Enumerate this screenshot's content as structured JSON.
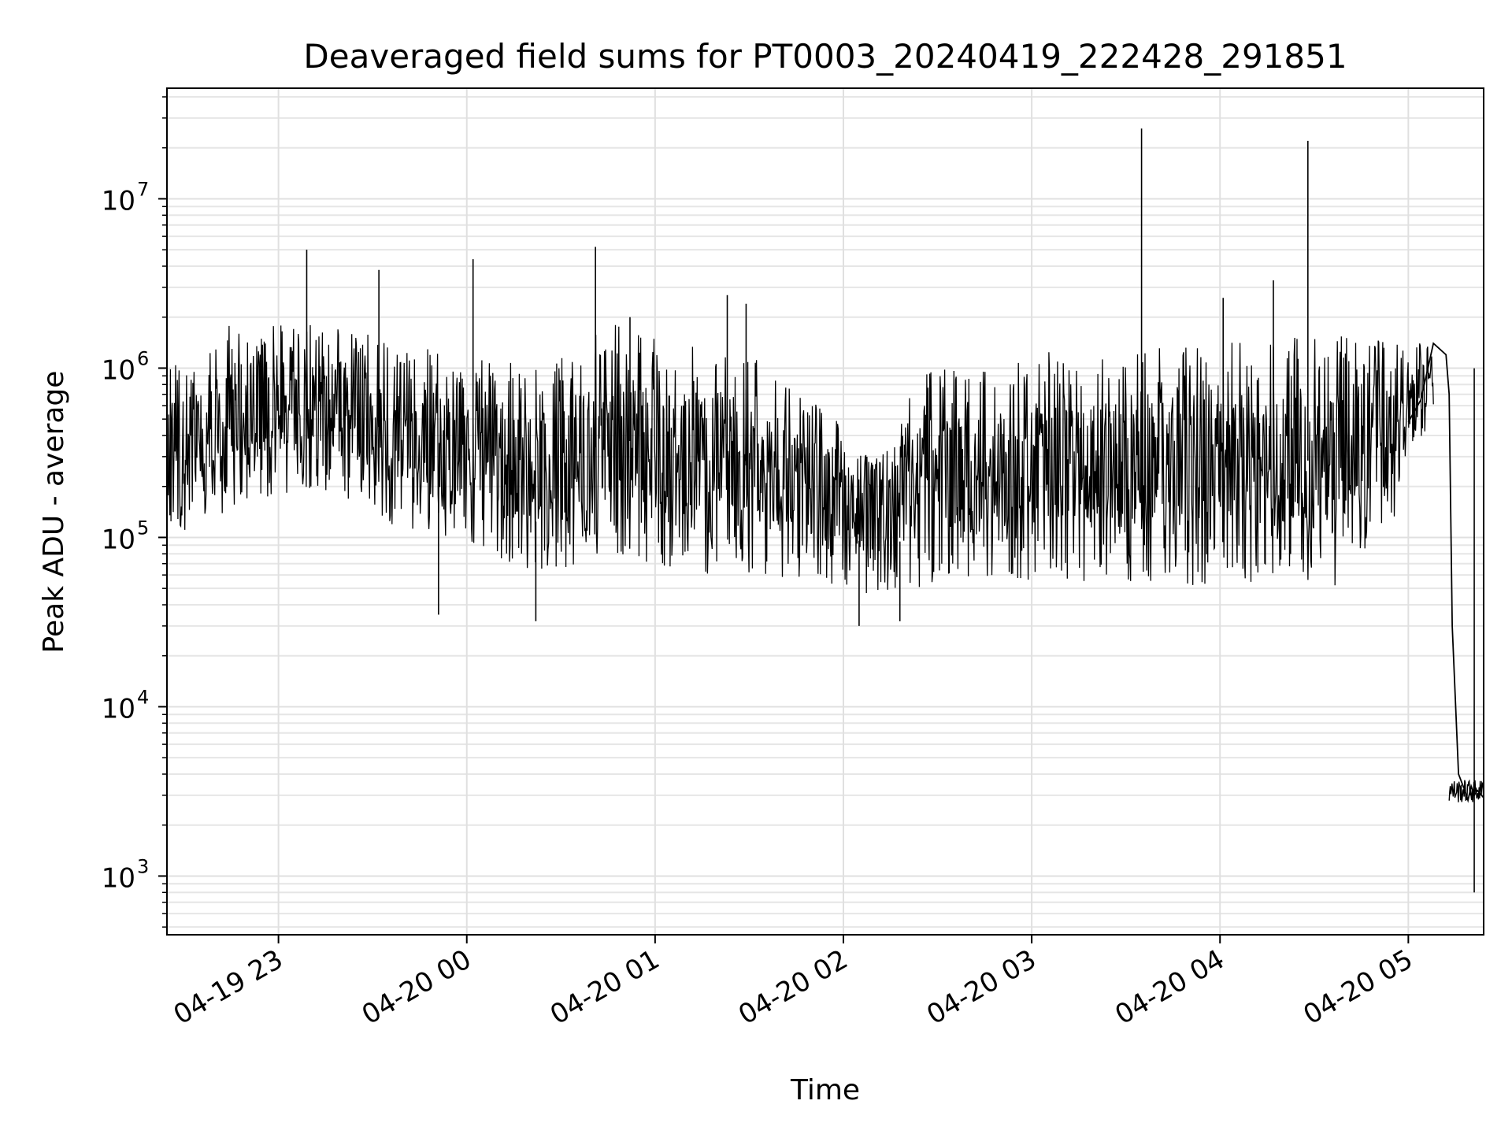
{
  "chart_data": {
    "type": "line",
    "title": "Deaveraged field sums for PT0003_20240419_222428_291851",
    "xlabel": "Time",
    "ylabel": "Peak ADU - average",
    "yscale": "log",
    "ylim": [
      450,
      45000000
    ],
    "xlim": [
      "2024-04-19 22:24:28",
      "2024-04-20 05:24:00"
    ],
    "grid": "on (major and minor)",
    "line_color": "#000000",
    "x_ticks": [
      {
        "value": "2024-04-19 23:00:00",
        "label": "04-19 23"
      },
      {
        "value": "2024-04-20 00:00:00",
        "label": "04-20 00"
      },
      {
        "value": "2024-04-20 01:00:00",
        "label": "04-20 01"
      },
      {
        "value": "2024-04-20 02:00:00",
        "label": "04-20 02"
      },
      {
        "value": "2024-04-20 03:00:00",
        "label": "04-20 03"
      },
      {
        "value": "2024-04-20 04:00:00",
        "label": "04-20 04"
      },
      {
        "value": "2024-04-20 05:00:00",
        "label": "04-20 05"
      }
    ],
    "y_ticks": [
      {
        "value": 1000,
        "base": "10",
        "exp": "3"
      },
      {
        "value": 10000,
        "base": "10",
        "exp": "4"
      },
      {
        "value": 100000,
        "base": "10",
        "exp": "5"
      },
      {
        "value": 1000000,
        "base": "10",
        "exp": "6"
      },
      {
        "value": 10000000,
        "base": "10",
        "exp": "7"
      }
    ],
    "series": [
      {
        "x": [
          "2024-04-19 22:24:28",
          "2024-04-19 22:30:00",
          "2024-04-19 22:36:00",
          "2024-04-19 22:42:00",
          "2024-04-19 22:48:00",
          "2024-04-19 22:54:00",
          "2024-04-19 23:00:00",
          "2024-04-19 23:06:00",
          "2024-04-19 23:12:00",
          "2024-04-19 23:18:00",
          "2024-04-19 23:24:00",
          "2024-04-19 23:30:00",
          "2024-04-19 23:36:00",
          "2024-04-19 23:42:00",
          "2024-04-19 23:48:00",
          "2024-04-19 23:54:00",
          "2024-04-20 00:00:00",
          "2024-04-20 00:06:00",
          "2024-04-20 00:12:00",
          "2024-04-20 00:18:00",
          "2024-04-20 00:24:00",
          "2024-04-20 00:30:00",
          "2024-04-20 00:36:00",
          "2024-04-20 00:42:00",
          "2024-04-20 00:48:00",
          "2024-04-20 00:54:00",
          "2024-04-20 01:00:00",
          "2024-04-20 01:06:00",
          "2024-04-20 01:12:00",
          "2024-04-20 01:18:00",
          "2024-04-20 01:24:00",
          "2024-04-20 01:30:00",
          "2024-04-20 01:36:00",
          "2024-04-20 01:42:00",
          "2024-04-20 01:48:00",
          "2024-04-20 01:54:00",
          "2024-04-20 02:00:00",
          "2024-04-20 02:06:00",
          "2024-04-20 02:12:00",
          "2024-04-20 02:18:00",
          "2024-04-20 02:24:00",
          "2024-04-20 02:30:00",
          "2024-04-20 02:36:00",
          "2024-04-20 02:42:00",
          "2024-04-20 02:48:00",
          "2024-04-20 02:54:00",
          "2024-04-20 03:00:00",
          "2024-04-20 03:06:00",
          "2024-04-20 03:12:00",
          "2024-04-20 03:18:00",
          "2024-04-20 03:24:00",
          "2024-04-20 03:30:00",
          "2024-04-20 03:36:00",
          "2024-04-20 03:42:00",
          "2024-04-20 03:48:00",
          "2024-04-20 03:54:00",
          "2024-04-20 04:00:00",
          "2024-04-20 04:06:00",
          "2024-04-20 04:12:00",
          "2024-04-20 04:18:00",
          "2024-04-20 04:24:00",
          "2024-04-20 04:30:00",
          "2024-04-20 04:36:00",
          "2024-04-20 04:42:00",
          "2024-04-20 04:48:00",
          "2024-04-20 04:54:00",
          "2024-04-20 05:00:00",
          "2024-04-20 05:04:00",
          "2024-04-20 05:08:00",
          "2024-04-20 05:12:00",
          "2024-04-20 05:13:00",
          "2024-04-20 05:14:00",
          "2024-04-20 05:16:00",
          "2024-04-20 05:18:00",
          "2024-04-20 05:19:00",
          "2024-04-20 05:20:00",
          "2024-04-20 05:21:00",
          "2024-04-20 05:22:00",
          "2024-04-20 05:24:00"
        ],
        "y": [
          300000,
          250000,
          450000,
          500000,
          550000,
          600000,
          500000,
          700000,
          650000,
          550000,
          400000,
          350000,
          300000,
          350000,
          250000,
          300000,
          400000,
          350000,
          250000,
          200000,
          220000,
          300000,
          280000,
          350000,
          300000,
          400000,
          250000,
          300000,
          320000,
          300000,
          350000,
          400000,
          300000,
          250000,
          200000,
          150000,
          130000,
          120000,
          110000,
          130000,
          170000,
          200000,
          180000,
          190000,
          200000,
          180000,
          170000,
          180000,
          160000,
          200000,
          250000,
          300000,
          200000,
          280000,
          250000,
          230000,
          260000,
          300000,
          280000,
          320000,
          250000,
          350000,
          300000,
          330000,
          350000,
          380000,
          480000,
          650000,
          1400000,
          1200000,
          700000,
          30000,
          4000,
          3200,
          2800,
          3400,
          3000,
          3200,
          2900
        ]
      }
    ],
    "spikes": [
      {
        "x": "2024-04-19 23:09:00",
        "y": 5000000
      },
      {
        "x": "2024-04-19 23:32:00",
        "y": 3800000
      },
      {
        "x": "2024-04-20 00:02:00",
        "y": 4400000
      },
      {
        "x": "2024-04-20 00:41:00",
        "y": 5200000
      },
      {
        "x": "2024-04-20 00:52:00",
        "y": 2000000
      },
      {
        "x": "2024-04-20 01:23:00",
        "y": 2700000
      },
      {
        "x": "2024-04-20 01:29:00",
        "y": 2400000
      },
      {
        "x": "2024-04-20 03:35:00",
        "y": 26000000
      },
      {
        "x": "2024-04-20 04:01:00",
        "y": 2600000
      },
      {
        "x": "2024-04-20 04:17:00",
        "y": 3300000
      },
      {
        "x": "2024-04-20 04:28:00",
        "y": 22000000
      },
      {
        "x": "2024-04-20 05:21:00",
        "y": 800
      },
      {
        "x": "2024-04-19 23:51:00",
        "y": 35000
      },
      {
        "x": "2024-04-20 00:22:00",
        "y": 32000
      },
      {
        "x": "2024-04-20 02:05:00",
        "y": 30000
      },
      {
        "x": "2024-04-20 02:18:00",
        "y": 32000
      }
    ],
    "envelope": [
      {
        "x": "2024-04-19 22:24:28",
        "low": 100000,
        "high": 1100000
      },
      {
        "x": "2024-04-19 22:48:00",
        "low": 150000,
        "high": 2000000
      },
      {
        "x": "2024-04-19 23:12:00",
        "low": 200000,
        "high": 1800000
      },
      {
        "x": "2024-04-19 23:36:00",
        "low": 120000,
        "high": 1500000
      },
      {
        "x": "2024-04-20 00:00:00",
        "low": 90000,
        "high": 1200000
      },
      {
        "x": "2024-04-20 00:24:00",
        "low": 60000,
        "high": 1000000
      },
      {
        "x": "2024-04-20 00:48:00",
        "low": 80000,
        "high": 1900000
      },
      {
        "x": "2024-04-20 01:12:00",
        "low": 60000,
        "high": 1400000
      },
      {
        "x": "2024-04-20 01:36:00",
        "low": 60000,
        "high": 1100000
      },
      {
        "x": "2024-04-20 02:00:00",
        "low": 50000,
        "high": 450000
      },
      {
        "x": "2024-04-20 02:12:00",
        "low": 45000,
        "high": 300000
      },
      {
        "x": "2024-04-20 02:24:00",
        "low": 50000,
        "high": 1000000
      },
      {
        "x": "2024-04-20 02:48:00",
        "low": 60000,
        "high": 950000
      },
      {
        "x": "2024-04-20 03:00:00",
        "low": 55000,
        "high": 1300000
      },
      {
        "x": "2024-04-20 03:24:00",
        "low": 55000,
        "high": 1350000
      },
      {
        "x": "2024-04-20 03:48:00",
        "low": 50000,
        "high": 1400000
      },
      {
        "x": "2024-04-20 04:12:00",
        "low": 55000,
        "high": 1500000
      },
      {
        "x": "2024-04-20 04:36:00",
        "low": 50000,
        "high": 1600000
      },
      {
        "x": "2024-04-20 04:54:00",
        "low": 100000,
        "high": 1500000
      },
      {
        "x": "2024-04-20 05:00:00",
        "low": 300000,
        "high": 1300000
      },
      {
        "x": "2024-04-20 05:08:00",
        "low": 500000,
        "high": 1800000
      }
    ]
  }
}
